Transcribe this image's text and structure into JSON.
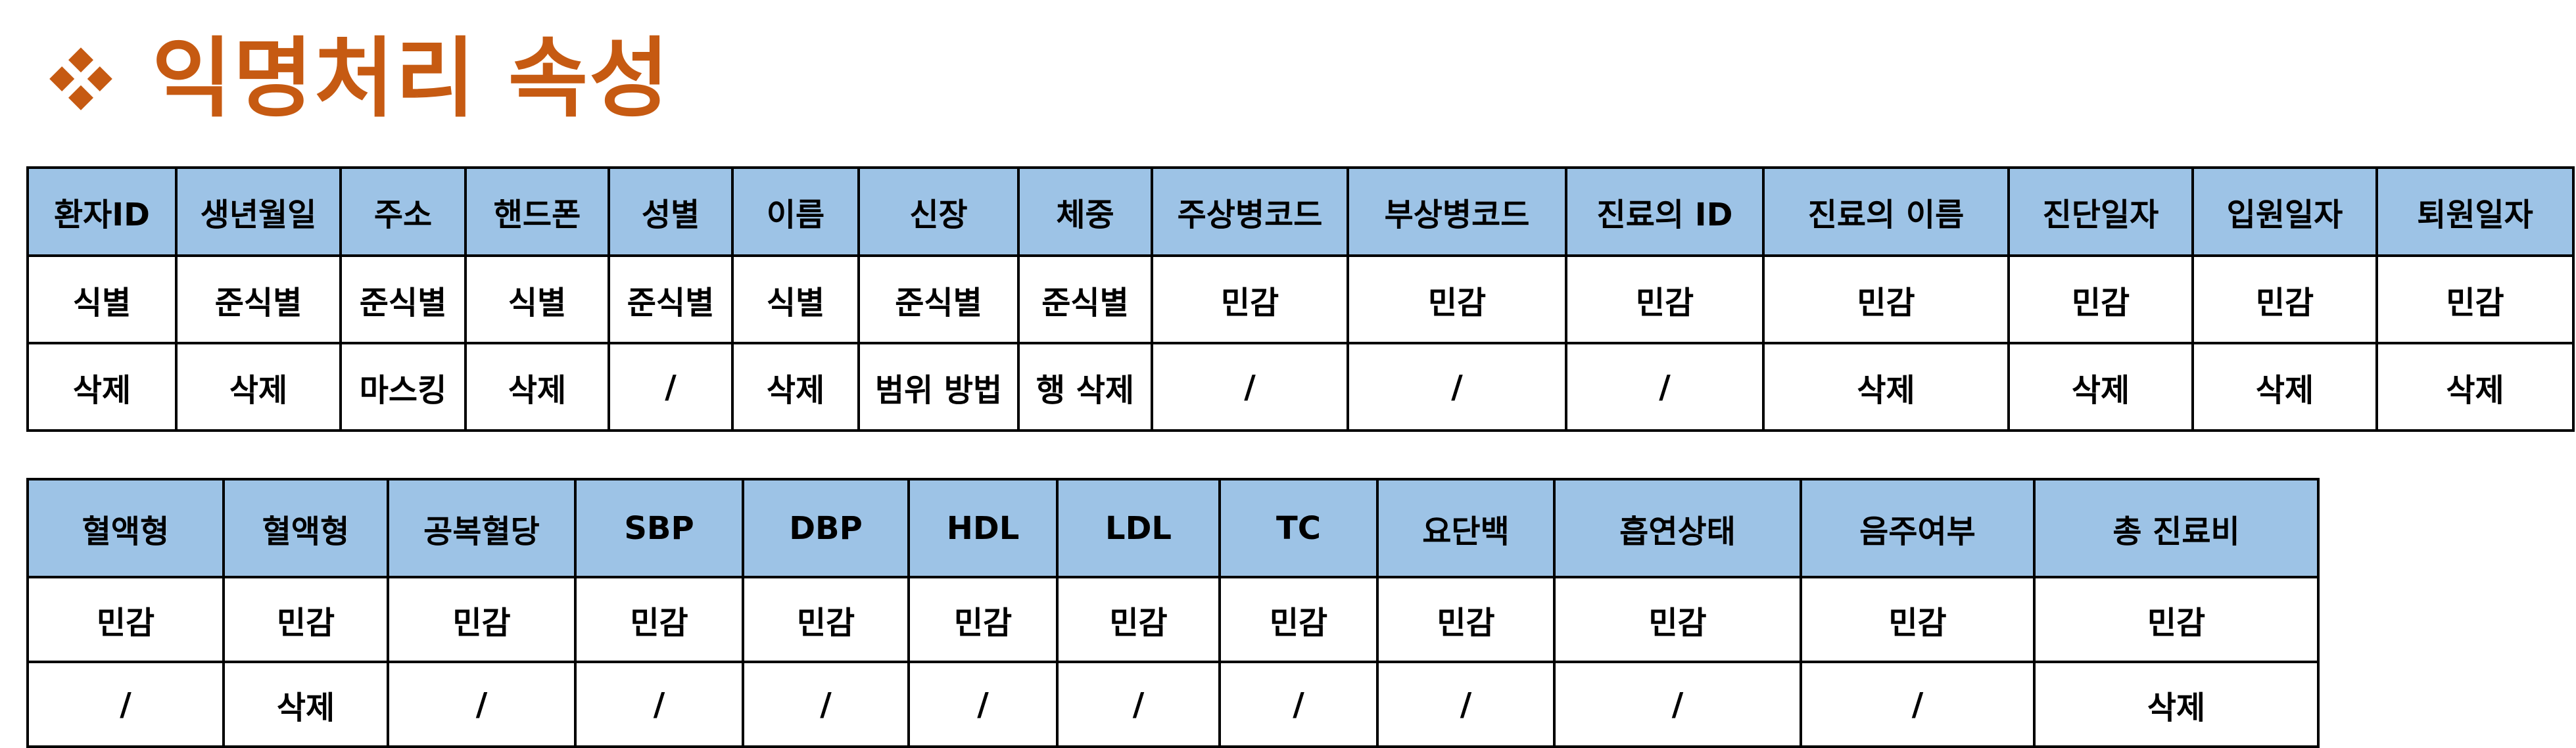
{
  "page": {
    "title": "익명처리 속성",
    "title_icon": "diamond-bullet-icon",
    "title_color": "#c65a12",
    "header_bg_color": "#9dc3e6"
  },
  "table1": {
    "headers": [
      "환자ID",
      "생년월일",
      "주소",
      "핸드폰",
      "성별",
      "이름",
      "신장",
      "체중",
      "주상병코드",
      "부상병코드",
      "진료의 ID",
      "진료의 이름",
      "진단일자",
      "입원일자",
      "퇴원일자"
    ],
    "rows": [
      [
        "식별",
        "준식별",
        "준식별",
        "식별",
        "준식별",
        "식별",
        "준식별",
        "준식별",
        "민감",
        "민감",
        "민감",
        "민감",
        "민감",
        "민감",
        "민감"
      ],
      [
        "삭제",
        "삭제",
        "마스킹",
        "삭제",
        "/",
        "삭제",
        "범위 방법",
        "행 삭제",
        "/",
        "/",
        "/",
        "삭제",
        "삭제",
        "삭제",
        "삭제"
      ]
    ]
  },
  "table2": {
    "headers": [
      "혈액형",
      "혈액형",
      "공복혈당",
      "SBP",
      "DBP",
      "HDL",
      "LDL",
      "TC",
      "요단백",
      "흡연상태",
      "음주여부",
      "총 진료비"
    ],
    "rows": [
      [
        "민감",
        "민감",
        "민감",
        "민감",
        "민감",
        "민감",
        "민감",
        "민감",
        "민감",
        "민감",
        "민감",
        "민감"
      ],
      [
        "/",
        "삭제",
        "/",
        "/",
        "/",
        "/",
        "/",
        "/",
        "/",
        "/",
        "/",
        "삭제"
      ]
    ]
  }
}
